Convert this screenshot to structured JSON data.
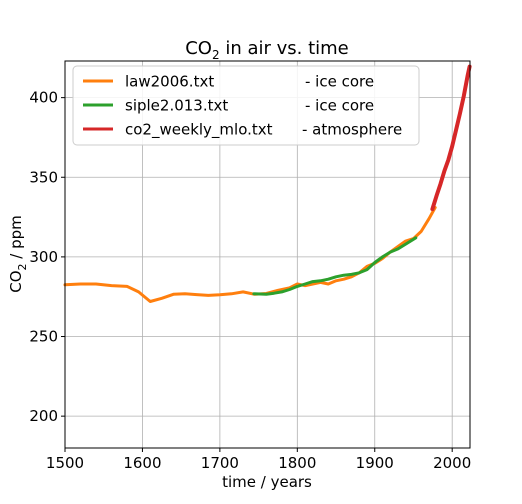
{
  "chart_data": {
    "type": "line",
    "title_main": "CO",
    "title_sub": "2",
    "title_rest": " in air vs. time",
    "xlabel": "time / years",
    "ylabel_main": "CO",
    "ylabel_sub": "2",
    "ylabel_rest": " / ppm",
    "xlim": [
      1500,
      2023
    ],
    "ylim": [
      180,
      423
    ],
    "xticks": [
      1500,
      1600,
      1700,
      1800,
      1900,
      2000
    ],
    "yticks": [
      200,
      250,
      300,
      350,
      400
    ],
    "grid": true,
    "legend_position": "top-left",
    "series": [
      {
        "name": "law2006.txt",
        "note": "- ice core",
        "color": "#ff7f0e",
        "x": [
          1500,
          1520,
          1540,
          1560,
          1580,
          1595,
          1610,
          1625,
          1640,
          1655,
          1670,
          1685,
          1700,
          1715,
          1730,
          1745,
          1760,
          1775,
          1790,
          1800,
          1810,
          1820,
          1830,
          1840,
          1850,
          1860,
          1870,
          1880,
          1890,
          1900,
          1910,
          1920,
          1930,
          1940,
          1950,
          1960,
          1970,
          1978
        ],
        "y": [
          282.5,
          283.0,
          283.0,
          282.0,
          281.5,
          278.0,
          272.0,
          274.0,
          276.5,
          276.8,
          276.3,
          275.8,
          276.2,
          276.8,
          278.0,
          276.5,
          277.0,
          279.0,
          280.5,
          283.0,
          282.0,
          283.0,
          284.0,
          283.0,
          285.0,
          286.0,
          287.5,
          290.0,
          294.0,
          296.0,
          299.0,
          303.0,
          306.5,
          310.0,
          311.5,
          316.0,
          324.0,
          331.0
        ]
      },
      {
        "name": "siple2.013.txt",
        "note": "- ice core",
        "color": "#2ca02c",
        "x": [
          1744,
          1760,
          1770,
          1780,
          1790,
          1800,
          1810,
          1820,
          1830,
          1840,
          1850,
          1860,
          1870,
          1880,
          1890,
          1900,
          1910,
          1920,
          1930,
          1940,
          1953
        ],
        "y": [
          276.8,
          276.6,
          277.2,
          278.0,
          279.5,
          281.5,
          283.0,
          284.5,
          285.0,
          286.0,
          287.5,
          288.5,
          289.0,
          290.0,
          292.0,
          296.5,
          300.0,
          303.0,
          305.0,
          308.0,
          312.0
        ]
      },
      {
        "name": "co2_weekly_mlo.txt",
        "note": "- atmosphere",
        "color": "#d62728",
        "x": [
          1974.5,
          1980,
          1985,
          1990,
          1995,
          2000,
          2005,
          2010,
          2015,
          2020,
          2022.5
        ],
        "y": [
          330.0,
          338.7,
          346.0,
          354.0,
          360.8,
          369.5,
          379.8,
          389.9,
          401.0,
          414.0,
          419.5
        ]
      }
    ]
  }
}
